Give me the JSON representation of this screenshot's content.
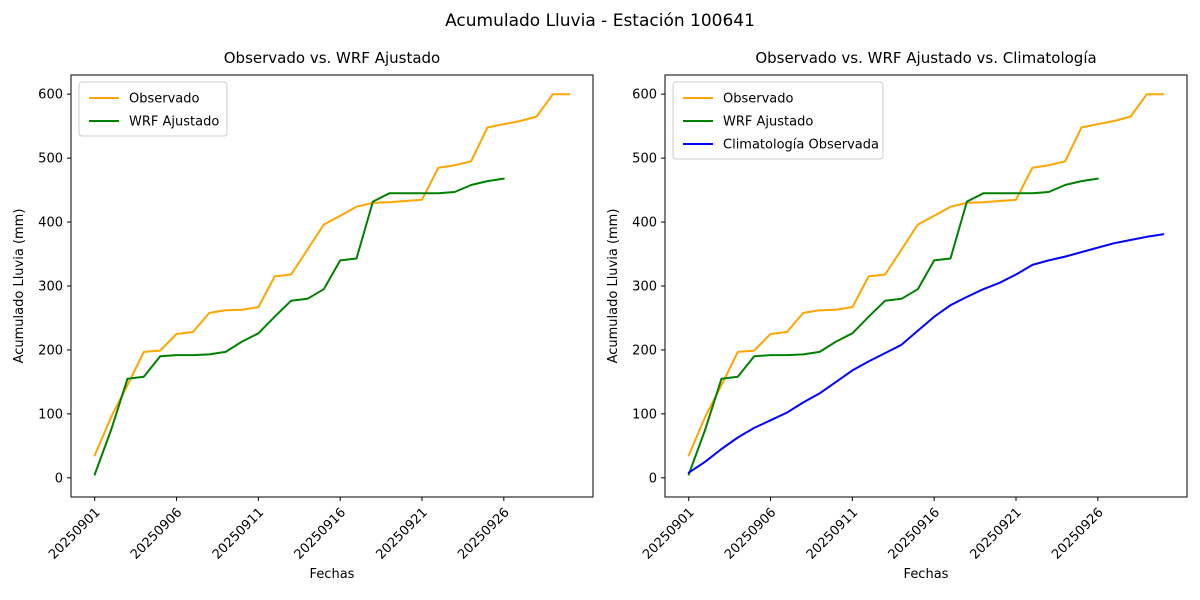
{
  "figure": {
    "suptitle": "Acumulado Lluvia - Estación 100641"
  },
  "chart_data": [
    {
      "type": "line",
      "title": "Observado vs. WRF Ajustado",
      "xlabel": "Fechas",
      "ylabel": "Acumulado Lluvia (mm)",
      "x_start_date": "20250901",
      "x_interval": "daily",
      "x_tick_labels": [
        "20250901",
        "20250906",
        "20250911",
        "20250916",
        "20250921",
        "20250926"
      ],
      "x_tick_day_offsets": [
        0,
        5,
        10,
        15,
        20,
        25
      ],
      "x_tick_rotation_deg": 45,
      "y_ticks": [
        0,
        100,
        200,
        300,
        400,
        500,
        600
      ],
      "ylim": [
        -30,
        630
      ],
      "x_days_span": 29,
      "grid": false,
      "legend_position": "upper left",
      "series": [
        {
          "name": "Observado",
          "color": "#FFA500",
          "values": [
            35,
            95,
            145,
            197,
            199,
            225,
            228,
            258,
            262,
            263,
            267,
            315,
            318,
            357,
            396,
            410,
            424,
            430,
            431,
            433,
            435,
            485,
            489,
            495,
            548,
            553,
            558,
            565,
            600,
            600
          ]
        },
        {
          "name": "WRF Ajustado",
          "color": "#008000",
          "values": [
            5,
            75,
            155,
            158,
            190,
            192,
            192,
            193,
            197,
            213,
            226,
            252,
            277,
            280,
            295,
            340,
            343,
            432,
            445,
            445,
            445,
            445,
            447,
            458,
            464,
            468
          ]
        }
      ]
    },
    {
      "type": "line",
      "title": "Observado vs. WRF Ajustado vs. Climatología",
      "xlabel": "Fechas",
      "ylabel": "Acumulado Lluvia (mm)",
      "x_start_date": "20250901",
      "x_interval": "daily",
      "x_tick_labels": [
        "20250901",
        "20250906",
        "20250911",
        "20250916",
        "20250921",
        "20250926"
      ],
      "x_tick_day_offsets": [
        0,
        5,
        10,
        15,
        20,
        25
      ],
      "x_tick_rotation_deg": 45,
      "y_ticks": [
        0,
        100,
        200,
        300,
        400,
        500,
        600
      ],
      "ylim": [
        -30,
        630
      ],
      "x_days_span": 29,
      "grid": false,
      "legend_position": "upper left",
      "series": [
        {
          "name": "Observado",
          "color": "#FFA500",
          "values": [
            35,
            95,
            145,
            197,
            199,
            225,
            228,
            258,
            262,
            263,
            267,
            315,
            318,
            357,
            396,
            410,
            424,
            430,
            431,
            433,
            435,
            485,
            489,
            495,
            548,
            553,
            558,
            565,
            600,
            600
          ]
        },
        {
          "name": "WRF Ajustado",
          "color": "#008000",
          "values": [
            5,
            75,
            155,
            158,
            190,
            192,
            192,
            193,
            197,
            213,
            226,
            252,
            277,
            280,
            295,
            340,
            343,
            432,
            445,
            445,
            445,
            445,
            447,
            458,
            464,
            468
          ]
        },
        {
          "name": "Climatología Observada",
          "color": "#0000FF",
          "values": [
            8,
            25,
            45,
            63,
            78,
            90,
            102,
            118,
            132,
            150,
            168,
            182,
            195,
            208,
            230,
            252,
            270,
            283,
            295,
            305,
            318,
            333,
            340,
            346,
            353,
            360,
            367,
            372,
            377,
            381
          ]
        }
      ]
    }
  ]
}
